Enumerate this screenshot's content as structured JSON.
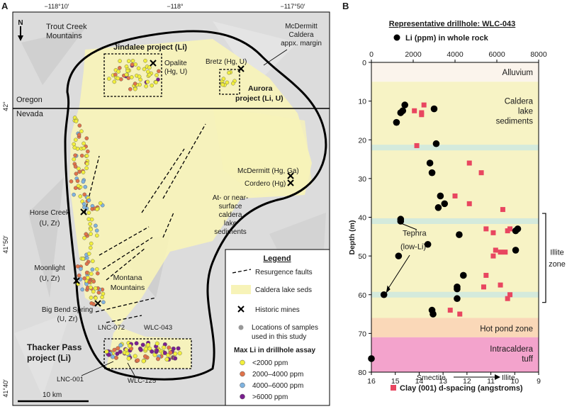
{
  "panel_a": {
    "letter": "A",
    "lon_ticks": [
      "−118°10′",
      "−118°",
      "−117°50′"
    ],
    "lat_ticks": [
      "42°",
      "41°50′",
      "41°40′"
    ],
    "north": "N",
    "state_oregon": "Oregon",
    "state_nevada": "Nevada",
    "place_labels": {
      "trout_creek_1": "Trout Creek",
      "trout_creek_2": "Mountains",
      "mcdermitt_caldera_1": "McDermitt",
      "mcdermitt_caldera_2": "Caldera",
      "mcdermitt_caldera_3": "appx. margin",
      "jindalee": "Jindalee project (Li)",
      "opalite_1": "Opalite",
      "opalite_2": "(Hg, U)",
      "bretz": "Bretz (Hg, U)",
      "aurora_1": "Aurora",
      "aurora_2": "project (Li, U)",
      "mcdermitt_mine": "McDermitt (Hg, Ga)",
      "cordero": "Cordero (Hg)",
      "lake_seds_1": "At- or near-",
      "lake_seds_2": "surface",
      "lake_seds_3": "caldera",
      "lake_seds_4": "lake",
      "lake_seds_5": "sediments",
      "horse_creek_1": "Horse Creek",
      "horse_creek_2": "(U, Zr)",
      "moonlight_1": "Moonlight",
      "moonlight_2": "(U, Zr)",
      "montana_1": "Montana",
      "montana_2": "Mountains",
      "big_bend_1": "Big Bend Spring",
      "big_bend_2": "(U, Zr)",
      "lnc072": "LNC-072",
      "wlc043": "WLC-043",
      "thacker_1": "Thacker Pass",
      "thacker_2": "project (Li)",
      "lnc001": "LNC-001",
      "wlc125": "WLC-125"
    },
    "scale_bar": "10 km",
    "legend": {
      "title": "Legend",
      "faults": "Resurgence faults",
      "lake_seds": "Caldera lake seds",
      "mines": "Historic mines",
      "samples_1": "Locations of samples",
      "samples_2": "used in this study",
      "li_title": "Max Li in drillhole assay",
      "li_classes": [
        "<2000 ppm",
        "2000–4000 ppm",
        "4000–6000 ppm",
        ">6000 ppm"
      ],
      "li_colors": [
        "#f2ef3c",
        "#e0734a",
        "#7fb3e0",
        "#7a1f8f"
      ]
    },
    "colors": {
      "lake_seds": "#f7f3b8",
      "terrain": "#d6d6d6",
      "caldera": "#000000"
    }
  },
  "panel_b": {
    "letter": "B",
    "title": "Representative drillhole: WLC-043",
    "legend_li": "Li (ppm) in whole rock",
    "legend_clay": "Clay (001) d-spacing (angstroms)",
    "ylabel": "Depth (m)",
    "x_smectite": "Smectite",
    "x_illite": "Illite",
    "zones": [
      {
        "name": "Alluvium",
        "top": 0,
        "bottom": 5,
        "color": "#fbf4ec"
      },
      {
        "name": "Caldera lake sediments",
        "lines": [
          "Caldera",
          "lake",
          "sediments"
        ],
        "top": 5,
        "bottom": 66,
        "color": "#f7f3c5"
      },
      {
        "name": "Hot pond zone",
        "top": 66,
        "bottom": 71,
        "color": "#fad8b8"
      },
      {
        "name": "Intracaldera tuff",
        "lines": [
          "Intracaldera",
          "tuff"
        ],
        "top": 71,
        "bottom": 80,
        "color": "#f3a3cc"
      }
    ],
    "tephra_bands": [
      22,
      41,
      60
    ],
    "tephra_label_1": "Tephra",
    "tephra_label_2": "(low-Li)",
    "illite_zone_1": "Illite",
    "illite_zone_2": "zone",
    "illite_zone_range": [
      39,
      62
    ]
  },
  "chart_data": {
    "type": "scatter",
    "title": "Representative drillhole: WLC-043",
    "ylabel": "Depth (m)",
    "ylim": [
      80,
      0
    ],
    "x_top": {
      "label": "Li (ppm) in whole rock",
      "ticks": [
        "0",
        "2000",
        "4000",
        "6000",
        "8000"
      ],
      "lim": [
        0,
        8000
      ]
    },
    "x_bottom": {
      "label": "Clay (001) d-spacing (angstroms)",
      "ticks": [
        "16",
        "15",
        "14",
        "13",
        "12",
        "11",
        "10",
        "9"
      ],
      "lim": [
        16,
        9
      ]
    },
    "y_ticks": [
      "0",
      "10",
      "20",
      "30",
      "40",
      "50",
      "60",
      "70",
      "80"
    ],
    "series": [
      {
        "name": "Li (ppm) in whole rock",
        "marker": "circle",
        "color": "#000000",
        "points": [
          [
            1400,
            13
          ],
          [
            1600,
            11
          ],
          [
            1500,
            12.5
          ],
          [
            1200,
            15.5
          ],
          [
            3000,
            12
          ],
          [
            3100,
            21
          ],
          [
            2800,
            26
          ],
          [
            2900,
            28.5
          ],
          [
            3300,
            34.5
          ],
          [
            3500,
            36.5
          ],
          [
            3200,
            37.5
          ],
          [
            1400,
            40.5
          ],
          [
            1400,
            41
          ],
          [
            7000,
            43
          ],
          [
            6900,
            43.5
          ],
          [
            4200,
            44.5
          ],
          [
            2700,
            47
          ],
          [
            6900,
            48.5
          ],
          [
            1300,
            50
          ],
          [
            4400,
            55
          ],
          [
            4100,
            58
          ],
          [
            4100,
            58.5
          ],
          [
            4100,
            61
          ],
          [
            600,
            60
          ],
          [
            2900,
            64
          ],
          [
            2950,
            65
          ],
          [
            0,
            76.5
          ]
        ]
      },
      {
        "name": "Clay (001) d-spacing (angstroms)",
        "marker": "square",
        "color": "#e84660",
        "points": [
          [
            13.8,
            11
          ],
          [
            14.2,
            12.5
          ],
          [
            13.9,
            13
          ],
          [
            13.9,
            13.5
          ],
          [
            14.1,
            21.5
          ],
          [
            11.9,
            26
          ],
          [
            11.4,
            28.5
          ],
          [
            12.5,
            34.5
          ],
          [
            11.9,
            36.5
          ],
          [
            10.5,
            38
          ],
          [
            11.2,
            43
          ],
          [
            10.2,
            43
          ],
          [
            10.3,
            43.5
          ],
          [
            10.9,
            44
          ],
          [
            10.8,
            48.5
          ],
          [
            10.6,
            49
          ],
          [
            10.4,
            49
          ],
          [
            10.9,
            50
          ],
          [
            11.2,
            55
          ],
          [
            11.3,
            58
          ],
          [
            10.6,
            57.5
          ],
          [
            10.2,
            60
          ],
          [
            10.3,
            61
          ],
          [
            12.7,
            64
          ],
          [
            12.3,
            65
          ]
        ]
      }
    ]
  }
}
